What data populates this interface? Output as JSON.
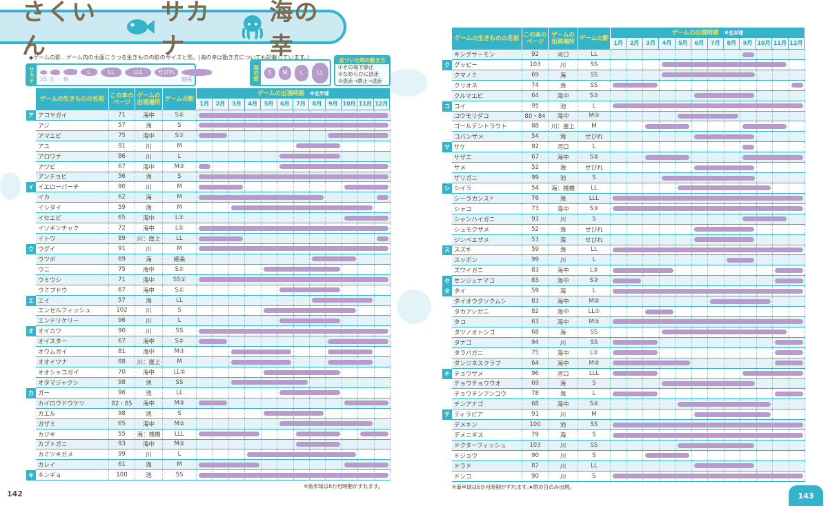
{
  "title": {
    "part1": "さくいん",
    "part2": "サカナ",
    "part3": "海の幸"
  },
  "legend": {
    "note": "◆ゲームの影…ゲーム内の水面にうつる生きものの影のサイズと形。(海の幸は動き方についても記載しています。)",
    "fish_label": "サカナ",
    "fish_shapes": [
      "SS",
      "S",
      "M",
      "L",
      "LL",
      "LLL",
      "せびれ",
      "細長"
    ],
    "sea_label": "海の幸",
    "sea_shapes": [
      "S",
      "M",
      "L",
      "LL"
    ],
    "moves_title": "近づいた時の動き方",
    "moves": [
      "①その場で静止",
      "②なめらかに逃走",
      "③逃走→静止→逃走"
    ]
  },
  "columns": {
    "name": "ゲームの生きものの名前",
    "page": "この本のページ",
    "place": "ゲームの出現場所",
    "shadow": "ゲームの影",
    "period": "ゲームの出現時期",
    "hemisphere": "※北半球",
    "months": [
      "1月",
      "2月",
      "3月",
      "4月",
      "5月",
      "6月",
      "7月",
      "8月",
      "9月",
      "10月",
      "11月",
      "12月"
    ]
  },
  "colors": {
    "accent": "#35b3c9",
    "bar": "#b79ccb",
    "header_text": "#f6e35a"
  },
  "left": {
    "page_number": "142",
    "footnote": "※南半球は6か月時期がずれます。",
    "rows": [
      {
        "k": "ア",
        "name": "アコヤガイ",
        "page": "71",
        "place": "海中",
        "shadow": "S②",
        "months": [
          [
            1,
            12
          ]
        ]
      },
      {
        "k": "",
        "name": "アジ",
        "page": "57",
        "place": "海",
        "shadow": "S",
        "months": [
          [
            1,
            12
          ]
        ]
      },
      {
        "k": "",
        "name": "アマエビ",
        "page": "75",
        "place": "海中",
        "shadow": "S③",
        "months": [
          [
            1,
            2
          ],
          [
            9,
            12
          ]
        ]
      },
      {
        "k": "",
        "name": "アユ",
        "page": "91",
        "place": "川",
        "shadow": "M",
        "months": [
          [
            7,
            9
          ]
        ]
      },
      {
        "k": "",
        "name": "アロワナ",
        "page": "86",
        "place": "川",
        "shadow": "L",
        "months": [
          [
            6,
            9
          ]
        ]
      },
      {
        "k": "",
        "name": "アワビ",
        "page": "67",
        "place": "海中",
        "shadow": "M②",
        "months": [
          [
            1,
            1
          ],
          [
            6,
            12
          ]
        ]
      },
      {
        "k": "",
        "name": "アンチョビ",
        "page": "56",
        "place": "海",
        "shadow": "S",
        "months": [
          [
            1,
            12
          ]
        ]
      },
      {
        "k": "イ",
        "name": "イエローパーチ",
        "page": "90",
        "place": "川",
        "shadow": "M",
        "months": [
          [
            1,
            3
          ],
          [
            10,
            12
          ]
        ]
      },
      {
        "k": "",
        "name": "イカ",
        "page": "62",
        "place": "海",
        "shadow": "M",
        "months": [
          [
            1,
            8
          ],
          [
            12,
            12
          ]
        ]
      },
      {
        "k": "",
        "name": "イシダイ",
        "page": "59",
        "place": "海",
        "shadow": "M",
        "months": [
          [
            3,
            11
          ]
        ]
      },
      {
        "k": "",
        "name": "イセエビ",
        "page": "65",
        "place": "海中",
        "shadow": "L③",
        "months": [
          [
            10,
            12
          ]
        ]
      },
      {
        "k": "",
        "name": "イソギンチャク",
        "page": "72",
        "place": "海中",
        "shadow": "L①",
        "months": [
          [
            1,
            12
          ]
        ]
      },
      {
        "k": "",
        "name": "イトウ",
        "page": "89",
        "place": "川：崖上",
        "shadow": "LL",
        "months": [
          [
            1,
            3
          ],
          [
            12,
            12
          ]
        ]
      },
      {
        "k": "ウ",
        "name": "ウグイ",
        "page": "91",
        "place": "川",
        "shadow": "M",
        "months": [
          [
            1,
            12
          ]
        ]
      },
      {
        "k": "",
        "name": "ウツボ",
        "page": "69",
        "place": "海",
        "shadow": "細長",
        "months": [
          [
            8,
            10
          ]
        ]
      },
      {
        "k": "",
        "name": "ウニ",
        "page": "75",
        "place": "海中",
        "shadow": "S②",
        "months": [
          [
            5,
            9
          ]
        ]
      },
      {
        "k": "",
        "name": "ウミウシ",
        "page": "71",
        "place": "海中",
        "shadow": "SS②",
        "months": [
          [
            1,
            12
          ]
        ]
      },
      {
        "k": "",
        "name": "ウミブドウ",
        "page": "67",
        "place": "海中",
        "shadow": "S①",
        "months": [
          [
            6,
            9
          ]
        ]
      },
      {
        "k": "エ",
        "name": "エイ",
        "page": "57",
        "place": "海",
        "shadow": "LL",
        "months": [
          [
            8,
            11
          ]
        ]
      },
      {
        "k": "",
        "name": "エンゼルフィッシュ",
        "page": "102",
        "place": "川",
        "shadow": "S",
        "months": [
          [
            5,
            10
          ]
        ]
      },
      {
        "k": "",
        "name": "エンドリケリー",
        "page": "96",
        "place": "川",
        "shadow": "L",
        "months": [
          [
            6,
            9
          ]
        ]
      },
      {
        "k": "オ",
        "name": "オイカワ",
        "page": "90",
        "place": "川",
        "shadow": "SS",
        "months": [
          [
            1,
            12
          ]
        ]
      },
      {
        "k": "",
        "name": "オイスター",
        "page": "67",
        "place": "海中",
        "shadow": "S②",
        "months": [
          [
            1,
            2
          ],
          [
            9,
            12
          ]
        ]
      },
      {
        "k": "",
        "name": "オウムガイ",
        "page": "81",
        "place": "海中",
        "shadow": "M②",
        "months": [
          [
            3,
            6
          ],
          [
            9,
            11
          ]
        ]
      },
      {
        "k": "",
        "name": "オオイワナ",
        "page": "88",
        "place": "川：崖上",
        "shadow": "M",
        "months": [
          [
            3,
            6
          ],
          [
            9,
            11
          ]
        ]
      },
      {
        "k": "",
        "name": "オオシャコガイ",
        "page": "70",
        "place": "海中",
        "shadow": "LL②",
        "months": [
          [
            5,
            9
          ]
        ]
      },
      {
        "k": "",
        "name": "オタマジャクシ",
        "page": "98",
        "place": "池",
        "shadow": "SS",
        "months": [
          [
            3,
            7
          ]
        ]
      },
      {
        "k": "カ",
        "name": "ガー",
        "page": "96",
        "place": "池",
        "shadow": "LL",
        "months": [
          [
            6,
            9
          ]
        ]
      },
      {
        "k": "",
        "name": "カイロウドウケツ",
        "page": "82・85",
        "place": "海中",
        "shadow": "M②",
        "months": [
          [
            1,
            2
          ],
          [
            10,
            12
          ]
        ]
      },
      {
        "k": "",
        "name": "カエル",
        "page": "98",
        "place": "池",
        "shadow": "S",
        "months": [
          [
            5,
            8
          ]
        ]
      },
      {
        "k": "",
        "name": "ガザミ",
        "page": "65",
        "place": "海中",
        "shadow": "M②",
        "months": [
          [
            6,
            11
          ]
        ]
      },
      {
        "k": "",
        "name": "カジキ",
        "page": "55",
        "place": "海：桟橋",
        "shadow": "LLL",
        "months": [
          [
            1,
            4
          ],
          [
            7,
            9
          ],
          [
            11,
            12
          ]
        ]
      },
      {
        "k": "",
        "name": "カブトガニ",
        "page": "93",
        "place": "海中",
        "shadow": "M②",
        "months": [
          [
            7,
            9
          ]
        ]
      },
      {
        "k": "",
        "name": "カミツキガメ",
        "page": "99",
        "place": "川",
        "shadow": "L",
        "months": [
          [
            4,
            10
          ]
        ]
      },
      {
        "k": "",
        "name": "カレイ",
        "page": "61",
        "place": "海",
        "shadow": "M",
        "months": [
          [
            1,
            4
          ],
          [
            10,
            12
          ]
        ]
      },
      {
        "k": "キ",
        "name": "キンギョ",
        "page": "100",
        "place": "池",
        "shadow": "SS",
        "months": [
          [
            1,
            12
          ]
        ]
      }
    ]
  },
  "right": {
    "page_number": "143",
    "footnote": "※南半球は6か月時期がずれます。",
    "footnote2": "★雨の日のみ出現。",
    "rows": [
      {
        "k": "",
        "name": "キングサーモン",
        "page": "92",
        "place": "河口",
        "shadow": "LL",
        "months": [
          [
            9,
            9
          ]
        ]
      },
      {
        "k": "ク",
        "name": "グッピー",
        "page": "103",
        "place": "川",
        "shadow": "SS",
        "months": [
          [
            4,
            11
          ]
        ]
      },
      {
        "k": "",
        "name": "クマノミ",
        "page": "69",
        "place": "海",
        "shadow": "SS",
        "months": [
          [
            4,
            9
          ]
        ]
      },
      {
        "k": "",
        "name": "クリオネ",
        "page": "74",
        "place": "海",
        "shadow": "SS",
        "months": [
          [
            1,
            3
          ],
          [
            12,
            12
          ]
        ]
      },
      {
        "k": "",
        "name": "クルマエビ",
        "page": "64",
        "place": "海中",
        "shadow": "S②",
        "months": [
          [
            6,
            9
          ]
        ]
      },
      {
        "k": "コ",
        "name": "コイ",
        "page": "95",
        "place": "池",
        "shadow": "L",
        "months": [
          [
            1,
            12
          ]
        ]
      },
      {
        "k": "",
        "name": "コウモリダコ",
        "page": "80・84",
        "place": "海中",
        "shadow": "M③",
        "months": [
          [
            5,
            8
          ]
        ]
      },
      {
        "k": "",
        "name": "ゴールデントラウト",
        "page": "88",
        "place": "川：崖上",
        "shadow": "M",
        "months": [
          [
            3,
            5
          ],
          [
            9,
            11
          ]
        ]
      },
      {
        "k": "",
        "name": "コバンザメ",
        "page": "54",
        "place": "海",
        "shadow": "せびれ",
        "months": [
          [
            6,
            9
          ]
        ]
      },
      {
        "k": "サ",
        "name": "サケ",
        "page": "92",
        "place": "河口",
        "shadow": "L",
        "months": [
          [
            9,
            9
          ]
        ]
      },
      {
        "k": "",
        "name": "サザエ",
        "page": "67",
        "place": "海中",
        "shadow": "S②",
        "months": [
          [
            3,
            5
          ],
          [
            9,
            12
          ]
        ]
      },
      {
        "k": "",
        "name": "サメ",
        "page": "52",
        "place": "海",
        "shadow": "せびれ",
        "months": [
          [
            6,
            9
          ]
        ]
      },
      {
        "k": "",
        "name": "ザリガニ",
        "page": "99",
        "place": "池",
        "shadow": "S",
        "months": [
          [
            4,
            9
          ]
        ]
      },
      {
        "k": "シ",
        "name": "シイラ",
        "page": "54",
        "place": "海：桟橋",
        "shadow": "LL",
        "months": [
          [
            5,
            10
          ]
        ]
      },
      {
        "k": "",
        "name": "シーラカンス",
        "star": "★",
        "page": "76",
        "place": "海",
        "shadow": "LLL",
        "months": [
          [
            1,
            12
          ]
        ]
      },
      {
        "k": "",
        "name": "シャコ",
        "page": "73",
        "place": "海中",
        "shadow": "S③",
        "months": [
          [
            1,
            12
          ]
        ]
      },
      {
        "k": "",
        "name": "シャンハイガニ",
        "page": "93",
        "place": "川",
        "shadow": "S",
        "months": [
          [
            9,
            11
          ]
        ]
      },
      {
        "k": "",
        "name": "シュモクザメ",
        "page": "52",
        "place": "海",
        "shadow": "せびれ",
        "months": [
          [
            6,
            9
          ]
        ]
      },
      {
        "k": "",
        "name": "ジンベエザメ",
        "page": "53",
        "place": "海",
        "shadow": "せびれ",
        "months": [
          [
            6,
            9
          ]
        ]
      },
      {
        "k": "ス",
        "name": "スズキ",
        "page": "59",
        "place": "海",
        "shadow": "LL",
        "months": [
          [
            1,
            12
          ]
        ]
      },
      {
        "k": "",
        "name": "スッポン",
        "page": "99",
        "place": "川",
        "shadow": "L",
        "months": [
          [
            8,
            9
          ]
        ]
      },
      {
        "k": "",
        "name": "ズワイガニ",
        "page": "83",
        "place": "海中",
        "shadow": "L②",
        "months": [
          [
            1,
            4
          ],
          [
            11,
            12
          ]
        ]
      },
      {
        "k": "セ",
        "name": "センジュナマコ",
        "page": "83",
        "place": "海中",
        "shadow": "S②",
        "months": [
          [
            1,
            2
          ],
          [
            11,
            12
          ]
        ]
      },
      {
        "k": "タ",
        "name": "タイ",
        "page": "59",
        "place": "海",
        "shadow": "L",
        "months": [
          [
            1,
            12
          ]
        ]
      },
      {
        "k": "",
        "name": "ダイオウグソクムシ",
        "page": "83",
        "place": "海中",
        "shadow": "M②",
        "months": [
          [
            7,
            10
          ]
        ]
      },
      {
        "k": "",
        "name": "タカアシガニ",
        "page": "82",
        "place": "海中",
        "shadow": "LL②",
        "months": [
          [
            3,
            4
          ]
        ]
      },
      {
        "k": "",
        "name": "タコ",
        "page": "63",
        "place": "海中",
        "shadow": "M③",
        "months": [
          [
            1,
            12
          ]
        ]
      },
      {
        "k": "",
        "name": "タツノオトシゴ",
        "page": "68",
        "place": "海",
        "shadow": "SS",
        "months": [
          [
            4,
            11
          ]
        ]
      },
      {
        "k": "",
        "name": "タナゴ",
        "page": "94",
        "place": "川",
        "shadow": "SS",
        "months": [
          [
            1,
            3
          ],
          [
            11,
            12
          ]
        ]
      },
      {
        "k": "",
        "name": "タラバガニ",
        "page": "75",
        "place": "海中",
        "shadow": "L②",
        "months": [
          [
            1,
            3
          ],
          [
            11,
            12
          ]
        ]
      },
      {
        "k": "",
        "name": "ダンジネスクラブ",
        "page": "64",
        "place": "海中",
        "shadow": "M②",
        "months": [
          [
            1,
            5
          ],
          [
            11,
            12
          ]
        ]
      },
      {
        "k": "チ",
        "name": "チョウザメ",
        "page": "96",
        "place": "河口",
        "shadow": "LLL",
        "months": [
          [
            1,
            3
          ],
          [
            9,
            12
          ]
        ]
      },
      {
        "k": "",
        "name": "チョウチョウウオ",
        "page": "69",
        "place": "海",
        "shadow": "S",
        "months": [
          [
            4,
            9
          ]
        ]
      },
      {
        "k": "",
        "name": "チョウチンアンコウ",
        "page": "78",
        "place": "海",
        "shadow": "L",
        "months": [
          [
            1,
            3
          ],
          [
            11,
            12
          ]
        ]
      },
      {
        "k": "",
        "name": "チンアナゴ",
        "page": "68",
        "place": "海中",
        "shadow": "S②",
        "months": [
          [
            5,
            10
          ]
        ]
      },
      {
        "k": "テ",
        "name": "ティラピア",
        "page": "91",
        "place": "川",
        "shadow": "M",
        "months": [
          [
            6,
            10
          ]
        ]
      },
      {
        "k": "",
        "name": "デメキン",
        "page": "100",
        "place": "池",
        "shadow": "SS",
        "months": [
          [
            1,
            12
          ]
        ]
      },
      {
        "k": "",
        "name": "デメニギス",
        "page": "79",
        "place": "海",
        "shadow": "S",
        "months": [
          [
            1,
            12
          ]
        ]
      },
      {
        "k": "",
        "name": "ドクターフィッシュ",
        "page": "103",
        "place": "川",
        "shadow": "SS",
        "months": [
          [
            5,
            9
          ]
        ]
      },
      {
        "k": "",
        "name": "ドジョウ",
        "page": "90",
        "place": "川",
        "shadow": "S",
        "months": [
          [
            3,
            5
          ]
        ]
      },
      {
        "k": "",
        "name": "ドラド",
        "page": "87",
        "place": "川",
        "shadow": "LL",
        "months": [
          [
            6,
            9
          ]
        ]
      },
      {
        "k": "",
        "name": "ドンコ",
        "page": "90",
        "place": "川",
        "shadow": "S",
        "months": [
          [
            1,
            12
          ]
        ]
      }
    ]
  }
}
